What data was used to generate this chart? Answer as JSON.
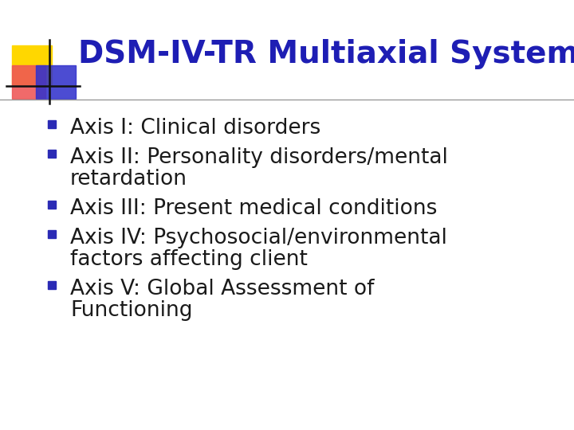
{
  "title": "DSM-IV-TR Multiaxial System",
  "title_color": "#1E1EB4",
  "title_fontsize": 28,
  "bg_color": "#FFFFFF",
  "bullet_color": "#2B2BB5",
  "text_color": "#1a1a1a",
  "bullet_items": [
    [
      "Axis I: Clinical disorders"
    ],
    [
      "Axis II: Personality disorders/mental",
      "    retardation"
    ],
    [
      "Axis III: Present medical conditions"
    ],
    [
      "Axis IV: Psychosocial/environmental",
      "    factors affecting client"
    ],
    [
      "Axis V: Global Assessment of",
      "    Functioning"
    ]
  ],
  "bullet_fontsize": 19,
  "deco_yellow": "#FFD700",
  "deco_red": "#EE5555",
  "deco_blue": "#3333CC",
  "deco_line_color": "#111111",
  "separator_color": "#999999"
}
